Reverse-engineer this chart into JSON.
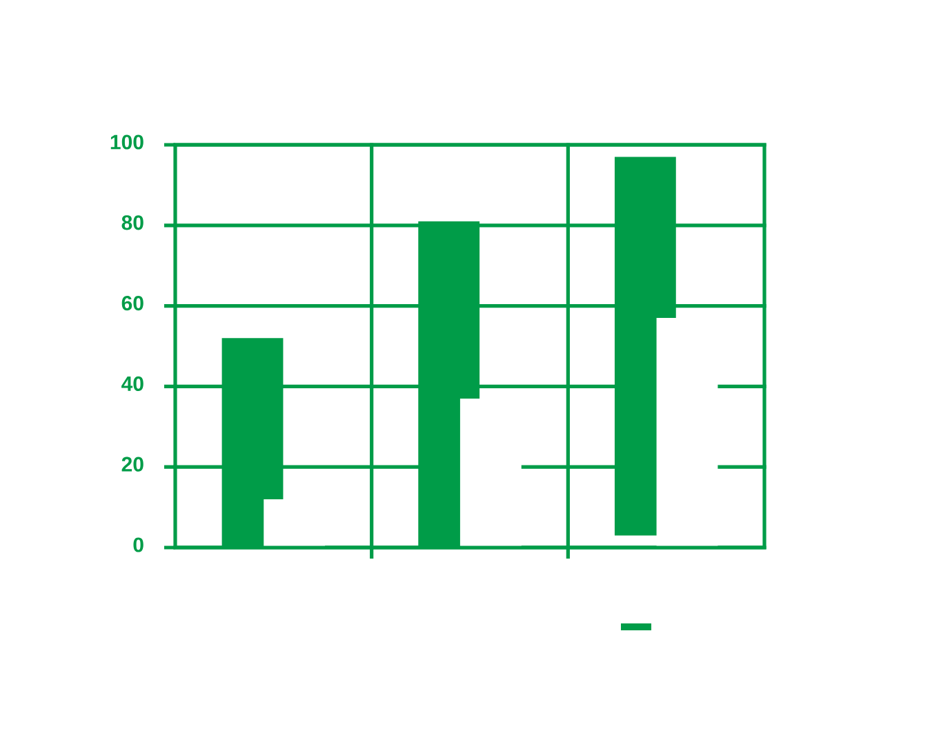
{
  "chart_data": {
    "type": "bar",
    "categories": [
      null,
      null,
      null
    ],
    "ylim": [
      0,
      100
    ],
    "yticks": [
      0,
      20,
      40,
      60,
      80,
      100
    ],
    "grid": true,
    "series": [
      {
        "color": "#009c48",
        "values": [
          52,
          81,
          94
        ],
        "base": [
          0,
          0,
          3
        ]
      },
      {
        "color": "#ffffff",
        "values": [
          12,
          37,
          57
        ]
      }
    ]
  }
}
